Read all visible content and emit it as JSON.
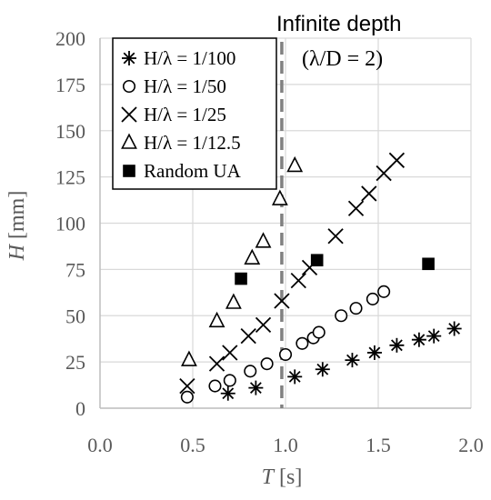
{
  "chart_data": {
    "type": "scatter",
    "xlabel_var": "T",
    "xlabel_unit": "[s]",
    "ylabel_var": "H",
    "ylabel_unit": "[mm]",
    "xlim": [
      0.0,
      2.0
    ],
    "ylim": [
      0,
      200
    ],
    "x_ticks": [
      "0.0",
      "0.5",
      "1.0",
      "1.5",
      "2.0"
    ],
    "y_ticks": [
      "0",
      "25",
      "50",
      "75",
      "100",
      "125",
      "150",
      "175",
      "200"
    ],
    "grid": "vertical-and-horizontal",
    "legend_position": "top-left",
    "annotation": {
      "line1": "Infinite depth",
      "line2": "(λ/D = 2)",
      "line_x": 0.98,
      "line_style": "dashed",
      "line_color": "#808080"
    },
    "series": [
      {
        "name": "H/λ = 1/100",
        "marker": "asterisk",
        "points": [
          [
            0.69,
            8
          ],
          [
            0.84,
            11
          ],
          [
            1.05,
            17
          ],
          [
            1.2,
            21
          ],
          [
            1.36,
            26
          ],
          [
            1.48,
            30
          ],
          [
            1.6,
            34
          ],
          [
            1.72,
            37
          ],
          [
            1.8,
            39
          ],
          [
            1.91,
            43
          ]
        ]
      },
      {
        "name": "H/λ = 1/50",
        "marker": "open-circle",
        "points": [
          [
            0.47,
            6
          ],
          [
            0.62,
            12
          ],
          [
            0.7,
            15
          ],
          [
            0.81,
            20
          ],
          [
            0.9,
            24
          ],
          [
            1.0,
            29
          ],
          [
            1.09,
            35
          ],
          [
            1.15,
            38
          ],
          [
            1.18,
            41
          ],
          [
            1.3,
            50
          ],
          [
            1.38,
            54
          ],
          [
            1.47,
            59
          ],
          [
            1.53,
            63
          ]
        ]
      },
      {
        "name": "H/λ = 1/25",
        "marker": "x",
        "points": [
          [
            0.47,
            12
          ],
          [
            0.63,
            24
          ],
          [
            0.7,
            30
          ],
          [
            0.8,
            39
          ],
          [
            0.88,
            45
          ],
          [
            0.98,
            58
          ],
          [
            1.07,
            69
          ],
          [
            1.13,
            76
          ],
          [
            1.27,
            93
          ],
          [
            1.38,
            108
          ],
          [
            1.45,
            116
          ],
          [
            1.53,
            127
          ],
          [
            1.6,
            134
          ]
        ]
      },
      {
        "name": "H/λ = 1/12.5",
        "marker": "open-triangle",
        "points": [
          [
            0.48,
            26
          ],
          [
            0.63,
            47
          ],
          [
            0.72,
            57
          ],
          [
            0.82,
            81
          ],
          [
            0.88,
            90
          ],
          [
            0.97,
            113
          ],
          [
            1.05,
            131
          ]
        ]
      },
      {
        "name": "Random UA",
        "marker": "filled-square",
        "points": [
          [
            0.76,
            70
          ],
          [
            1.17,
            80
          ],
          [
            1.77,
            78
          ]
        ]
      }
    ]
  },
  "colors": {
    "marker": "#000000",
    "grid": "#d9d9d9",
    "axis": "#bfbfbf",
    "tick_text": "#595959",
    "dashed_line": "#808080"
  }
}
